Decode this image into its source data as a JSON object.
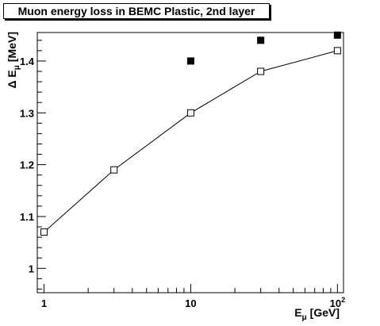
{
  "chart_data": {
    "type": "scatter",
    "title": "Muon energy loss in BEMC Plastic, 2nd layer",
    "xlabel_main": "E",
    "xlabel_sub": "μ",
    "xlabel_unit": "[GeV]",
    "ylabel_main": "Δ E",
    "ylabel_sub": "μ",
    "ylabel_unit": "[MeV]",
    "xscale": "log",
    "xlim": [
      0.9,
      110
    ],
    "ylim": [
      0.953,
      1.455
    ],
    "grid": false,
    "legend": "none",
    "x_tick_labels": [
      {
        "value": 1,
        "base": "1",
        "exp": ""
      },
      {
        "value": 10,
        "base": "10",
        "exp": ""
      },
      {
        "value": 100,
        "base": "10",
        "exp": "2"
      }
    ],
    "y_tick_labels": [
      {
        "value": 1.0,
        "label": "1"
      },
      {
        "value": 1.1,
        "label": "1.1"
      },
      {
        "value": 1.2,
        "label": "1.2"
      },
      {
        "value": 1.3,
        "label": "1.3"
      },
      {
        "value": 1.4,
        "label": "1.4"
      }
    ],
    "series": [
      {
        "marker": "open-square",
        "connected": true,
        "color": "#000000",
        "x": [
          1,
          3,
          10,
          30,
          100
        ],
        "y": [
          1.07,
          1.19,
          1.3,
          1.38,
          1.42
        ]
      },
      {
        "marker": "filled-square",
        "connected": false,
        "color": "#000000",
        "x": [
          10,
          30,
          100
        ],
        "y": [
          1.4,
          1.44,
          1.45
        ]
      }
    ]
  }
}
